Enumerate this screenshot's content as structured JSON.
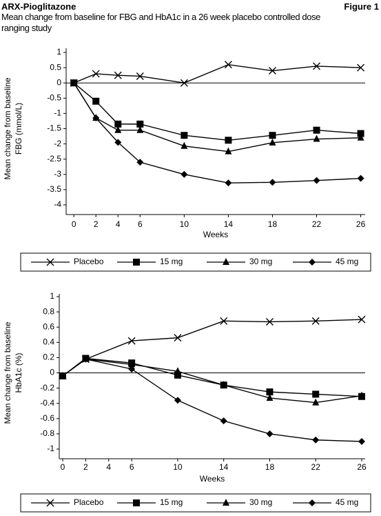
{
  "header": {
    "title": "ARX-Pioglitazone",
    "figure": "Figure 1",
    "subtitle": "Mean change from baseline for FBG and HbA1c in a 26 week placebo controlled dose ranging study"
  },
  "chart_data": [
    {
      "type": "line",
      "xlabel": "Weeks",
      "ylabel": [
        "Mean change from baseline",
        "FBG (mmol/L)"
      ],
      "x": [
        0,
        2,
        4,
        6,
        10,
        14,
        18,
        22,
        26
      ],
      "xlim": [
        -0.7,
        26.4
      ],
      "xticks": [
        0,
        2,
        4,
        6,
        10,
        14,
        18,
        22,
        26
      ],
      "ylim": [
        -4,
        1
      ],
      "yticks": [
        -4,
        -3.5,
        -3,
        -2.5,
        -2,
        -1.5,
        -1,
        -0.5,
        0,
        0.5,
        1
      ],
      "zero_line": true,
      "legend": "bottom",
      "series": [
        {
          "name": "Placebo",
          "color": "#000000",
          "marker": "x",
          "values": [
            0,
            0.3,
            0.25,
            0.22,
            0,
            0.6,
            0.4,
            0.55,
            0.5
          ]
        },
        {
          "name": "15 mg",
          "color": "#000000",
          "marker": "square",
          "values": [
            0,
            -0.6,
            -1.35,
            -1.35,
            -1.72,
            -1.88,
            -1.72,
            -1.55,
            -1.66
          ]
        },
        {
          "name": "30 mg",
          "color": "#000000",
          "marker": "triangle",
          "values": [
            0,
            -1.15,
            -1.55,
            -1.55,
            -2.07,
            -2.25,
            -1.96,
            -1.84,
            -1.8
          ]
        },
        {
          "name": "45 mg",
          "color": "#000000",
          "marker": "diamond",
          "values": [
            0,
            -1.15,
            -1.95,
            -2.6,
            -3.0,
            -3.28,
            -3.26,
            -3.2,
            -3.13
          ]
        }
      ]
    },
    {
      "type": "line",
      "xlabel": "Weeks",
      "ylabel": [
        "Mean change from baseline",
        "HbA1c (%)"
      ],
      "x": [
        0,
        2,
        6,
        10,
        14,
        18,
        22,
        26
      ],
      "xlim": [
        -0.3,
        26.3
      ],
      "xticks": [
        0,
        2,
        4,
        6,
        10,
        14,
        18,
        22,
        26
      ],
      "ylim": [
        -1,
        1
      ],
      "yticks": [
        -1,
        -0.8,
        -0.6,
        -0.4,
        -0.2,
        0,
        0.2,
        0.4,
        0.6,
        0.8,
        1
      ],
      "zero_line": true,
      "legend": "bottom",
      "series": [
        {
          "name": "Placebo",
          "color": "#000000",
          "marker": "x",
          "values": [
            -0.04,
            0.18,
            0.42,
            0.46,
            0.68,
            0.67,
            0.68,
            0.7
          ]
        },
        {
          "name": "15 mg",
          "color": "#000000",
          "marker": "square",
          "values": [
            -0.04,
            0.19,
            0.13,
            -0.03,
            -0.16,
            -0.25,
            -0.28,
            -0.31
          ]
        },
        {
          "name": "30 mg",
          "color": "#000000",
          "marker": "triangle",
          "values": [
            -0.04,
            0.18,
            0.11,
            0.02,
            -0.16,
            -0.33,
            -0.39,
            -0.3
          ]
        },
        {
          "name": "45 mg",
          "color": "#000000",
          "marker": "diamond",
          "values": [
            -0.04,
            0.18,
            0.05,
            -0.36,
            -0.63,
            -0.8,
            -0.88,
            -0.9
          ]
        }
      ]
    }
  ]
}
